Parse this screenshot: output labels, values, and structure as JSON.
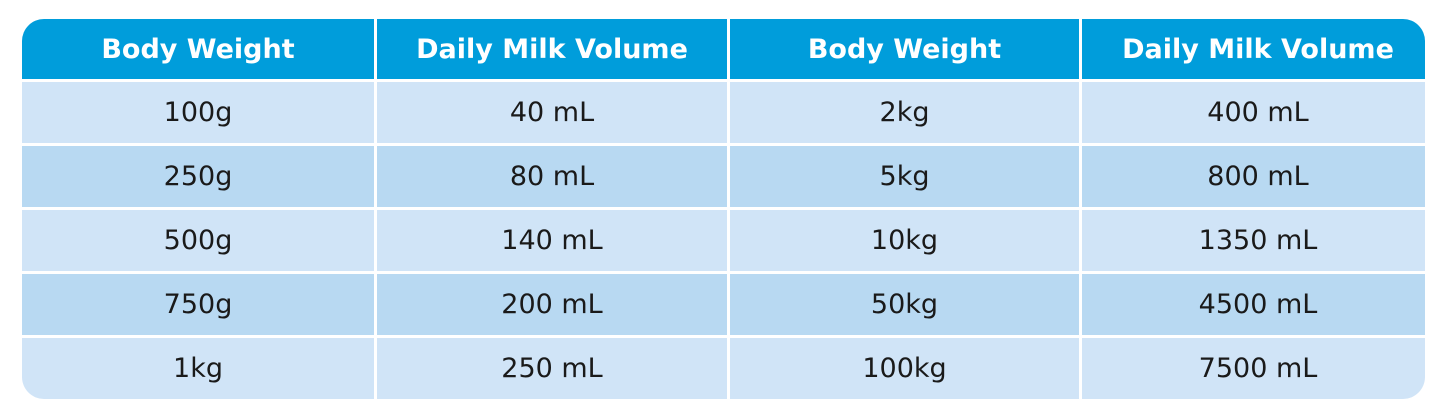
{
  "table": {
    "headers": [
      "Body Weight",
      "Daily Milk Volume",
      "Body Weight",
      "Daily Milk Volume"
    ],
    "rows": [
      [
        "100g",
        "40 mL",
        "2kg",
        "400 mL"
      ],
      [
        "250g",
        "80 mL",
        "5kg",
        "800 mL"
      ],
      [
        "500g",
        "140 mL",
        "10kg",
        "1350 mL"
      ],
      [
        "750g",
        "200 mL",
        "50kg",
        "4500 mL"
      ],
      [
        "1kg",
        "250 mL",
        "100kg",
        "7500 mL"
      ]
    ],
    "colors": {
      "header": "#009ddb",
      "row_light": "#d0e4f7",
      "row_dark": "#b8d9f2"
    }
  }
}
